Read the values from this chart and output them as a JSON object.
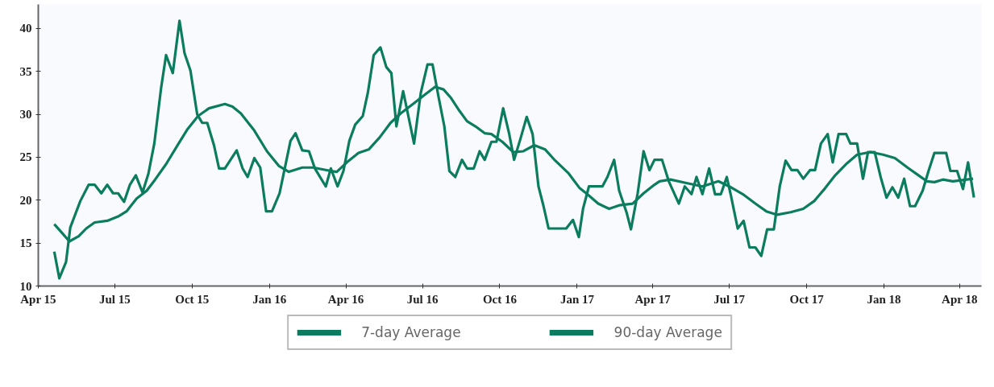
{
  "chart_data": {
    "type": "line",
    "legend": "bottom",
    "grid": false,
    "line_style": "solid",
    "marker": "none",
    "xlim": [
      "2015-04-01",
      "2018-04-27"
    ],
    "ylim": [
      10,
      42.8
    ],
    "xticks": [
      {
        "value": "2015-04-01",
        "label": "Apr 15"
      },
      {
        "value": "2015-07-01",
        "label": "Jul 15"
      },
      {
        "value": "2015-10-01",
        "label": "Oct 15"
      },
      {
        "value": "2016-01-01",
        "label": "Jan 16"
      },
      {
        "value": "2016-04-01",
        "label": "Apr 16"
      },
      {
        "value": "2016-07-01",
        "label": "Jul 16"
      },
      {
        "value": "2016-10-01",
        "label": "Oct 16"
      },
      {
        "value": "2017-01-01",
        "label": "Jan 17"
      },
      {
        "value": "2017-04-01",
        "label": "Apr 17"
      },
      {
        "value": "2017-07-01",
        "label": "Jul 17"
      },
      {
        "value": "2017-10-01",
        "label": "Oct 17"
      },
      {
        "value": "2018-01-01",
        "label": "Jan 18"
      },
      {
        "value": "2018-04-01",
        "label": "Apr 18"
      }
    ],
    "yticks": [
      10,
      15,
      20,
      25,
      30,
      35,
      40
    ],
    "series": [
      {
        "name": "7-day Average",
        "color": "#0b7d5e",
        "x": [
          "2015-04-20",
          "2015-04-26",
          "2015-05-04",
          "2015-05-09",
          "2015-05-21",
          "2015-05-31",
          "2015-06-07",
          "2015-06-15",
          "2015-06-22",
          "2015-06-29",
          "2015-07-05",
          "2015-07-12",
          "2015-07-19",
          "2015-07-26",
          "2015-08-03",
          "2015-08-10",
          "2015-08-17",
          "2015-08-25",
          "2015-08-31",
          "2015-09-08",
          "2015-09-16",
          "2015-09-22",
          "2015-09-29",
          "2015-10-07",
          "2015-10-13",
          "2015-10-19",
          "2015-10-27",
          "2015-11-02",
          "2015-11-09",
          "2015-11-23",
          "2015-11-30",
          "2015-12-06",
          "2015-12-14",
          "2015-12-21",
          "2015-12-28",
          "2016-01-04",
          "2016-01-13",
          "2016-01-26",
          "2016-02-01",
          "2016-02-09",
          "2016-02-17",
          "2016-02-24",
          "2016-03-08",
          "2016-03-14",
          "2016-03-22",
          "2016-03-29",
          "2016-04-05",
          "2016-04-12",
          "2016-04-21",
          "2016-04-27",
          "2016-05-04",
          "2016-05-12",
          "2016-05-19",
          "2016-05-25",
          "2016-05-31",
          "2016-06-08",
          "2016-06-21",
          "2016-06-29",
          "2016-07-07",
          "2016-07-13",
          "2016-07-20",
          "2016-07-27",
          "2016-08-02",
          "2016-08-09",
          "2016-08-17",
          "2016-08-23",
          "2016-08-31",
          "2016-09-07",
          "2016-09-13",
          "2016-09-21",
          "2016-09-27",
          "2016-10-05",
          "2016-10-12",
          "2016-10-18",
          "2016-10-26",
          "2016-11-02",
          "2016-11-09",
          "2016-11-16",
          "2016-11-22",
          "2016-11-28",
          "2016-12-06",
          "2016-12-13",
          "2016-12-19",
          "2016-12-27",
          "2017-01-03",
          "2017-01-08",
          "2017-01-15",
          "2017-01-23",
          "2017-01-31",
          "2017-02-06",
          "2017-02-14",
          "2017-02-20",
          "2017-03-01",
          "2017-03-06",
          "2017-03-14",
          "2017-03-21",
          "2017-03-28",
          "2017-04-03",
          "2017-04-12",
          "2017-04-20",
          "2017-05-02",
          "2017-05-09",
          "2017-05-17",
          "2017-05-23",
          "2017-05-30",
          "2017-06-07",
          "2017-06-14",
          "2017-06-21",
          "2017-06-28",
          "2017-07-03",
          "2017-07-11",
          "2017-07-18",
          "2017-07-25",
          "2017-08-01",
          "2017-08-08",
          "2017-08-15",
          "2017-08-23",
          "2017-08-30",
          "2017-09-06",
          "2017-09-13",
          "2017-09-20",
          "2017-09-27",
          "2017-10-05",
          "2017-10-11",
          "2017-10-18",
          "2017-10-26",
          "2017-11-01",
          "2017-11-08",
          "2017-11-17",
          "2017-11-22",
          "2017-11-30",
          "2017-12-07",
          "2017-12-13",
          "2017-12-21",
          "2017-12-28",
          "2018-01-04",
          "2018-01-11",
          "2018-01-18",
          "2018-01-25",
          "2018-02-01",
          "2018-02-07",
          "2018-02-16",
          "2018-02-23",
          "2018-03-02",
          "2018-03-08",
          "2018-03-16",
          "2018-03-21",
          "2018-03-29",
          "2018-04-05",
          "2018-04-11",
          "2018-04-18"
        ],
        "values": [
          14,
          10.9,
          12.8,
          16.8,
          19.9,
          21.8,
          21.8,
          20.8,
          21.8,
          20.8,
          20.8,
          19.8,
          21.8,
          22.9,
          20.9,
          23.1,
          26.6,
          33,
          36.9,
          34.8,
          40.9,
          37.1,
          35.1,
          30,
          29,
          29,
          26.4,
          23.7,
          23.7,
          25.8,
          23.7,
          22.7,
          24.9,
          23.8,
          18.7,
          18.7,
          20.8,
          26.9,
          27.8,
          25.8,
          25.7,
          23.7,
          21.6,
          23.7,
          21.6,
          23.4,
          26.9,
          28.8,
          29.8,
          32.5,
          36.9,
          37.8,
          35.5,
          34.8,
          28.6,
          32.7,
          26.6,
          32.5,
          35.8,
          35.8,
          32.1,
          28.6,
          23.4,
          22.7,
          24.7,
          23.7,
          23.7,
          25.7,
          24.7,
          26.8,
          26.8,
          30.7,
          27.8,
          24.7,
          27.3,
          29.7,
          27.7,
          21.6,
          19.3,
          16.7,
          16.7,
          16.7,
          16.7,
          17.7,
          15.7,
          19,
          21.6,
          21.6,
          21.6,
          22.7,
          24.7,
          21.1,
          18.5,
          16.6,
          20.8,
          25.7,
          23.5,
          24.7,
          24.7,
          22.2,
          19.6,
          21.6,
          20.7,
          22.7,
          20.7,
          23.7,
          20.7,
          20.7,
          22.7,
          20.5,
          16.7,
          17.6,
          14.5,
          14.5,
          13.5,
          16.6,
          16.6,
          21.6,
          24.6,
          23.5,
          23.5,
          22.5,
          23.5,
          23.5,
          26.6,
          27.7,
          24.4,
          27.7,
          27.7,
          26.6,
          26.6,
          22.5,
          25.6,
          25.6,
          22.7,
          20.3,
          21.5,
          20.3,
          22.5,
          19.3,
          19.3,
          21.1,
          23.4,
          25.5,
          25.5,
          25.5,
          23.4,
          23.4,
          21.3,
          24.4,
          20.3
        ]
      },
      {
        "name": "90-day Average",
        "color": "#0b7d5e",
        "x": [
          "2015-04-20",
          "2015-04-30",
          "2015-05-08",
          "2015-05-19",
          "2015-05-28",
          "2015-06-07",
          "2015-06-22",
          "2015-07-05",
          "2015-07-15",
          "2015-07-27",
          "2015-08-08",
          "2015-08-18",
          "2015-08-31",
          "2015-09-13",
          "2015-09-25",
          "2015-10-08",
          "2015-10-21",
          "2015-11-09",
          "2015-11-18",
          "2015-11-28",
          "2015-12-14",
          "2015-12-29",
          "2016-01-12",
          "2016-01-24",
          "2016-02-09",
          "2016-02-22",
          "2016-03-14",
          "2016-03-21",
          "2016-04-02",
          "2016-04-16",
          "2016-04-28",
          "2016-05-11",
          "2016-05-24",
          "2016-06-05",
          "2016-06-21",
          "2016-07-04",
          "2016-07-16",
          "2016-07-26",
          "2016-08-04",
          "2016-08-14",
          "2016-08-23",
          "2016-09-02",
          "2016-09-13",
          "2016-09-21",
          "2016-10-04",
          "2016-10-17",
          "2016-10-29",
          "2016-11-11",
          "2016-11-24",
          "2016-12-06",
          "2016-12-22",
          "2017-01-04",
          "2017-01-13",
          "2017-01-26",
          "2017-02-08",
          "2017-02-20",
          "2017-03-08",
          "2017-03-21",
          "2017-04-03",
          "2017-04-09",
          "2017-04-22",
          "2017-05-11",
          "2017-05-30",
          "2017-06-18",
          "2017-07-01",
          "2017-07-17",
          "2017-08-01",
          "2017-08-14",
          "2017-08-27",
          "2017-09-12",
          "2017-09-27",
          "2017-10-10",
          "2017-10-23",
          "2017-11-04",
          "2017-11-18",
          "2017-11-30",
          "2017-12-16",
          "2017-12-31",
          "2018-01-14",
          "2018-01-29",
          "2018-02-11",
          "2018-02-21",
          "2018-03-02",
          "2018-03-12",
          "2018-03-24",
          "2018-04-17"
        ],
        "values": [
          17.2,
          16.1,
          15.2,
          15.8,
          16.7,
          17.4,
          17.6,
          18.1,
          18.7,
          20.2,
          21.1,
          22.4,
          24.2,
          26.3,
          28.2,
          29.8,
          30.7,
          31.2,
          30.9,
          30.1,
          28.1,
          25.7,
          24,
          23.3,
          23.8,
          23.8,
          23.4,
          23.3,
          24.4,
          25.5,
          25.9,
          27.3,
          29,
          30.1,
          31.3,
          32.3,
          33.2,
          32.9,
          31.9,
          30.4,
          29.2,
          28.6,
          27.8,
          27.7,
          26.8,
          25.6,
          25.7,
          26.4,
          25.9,
          24.6,
          23.1,
          21.4,
          20.7,
          19.6,
          19,
          19.4,
          19.6,
          20.8,
          21.8,
          22.2,
          22.4,
          22,
          21.6,
          22.2,
          21.6,
          20.7,
          19.6,
          18.7,
          18.3,
          18.6,
          19,
          19.9,
          21.4,
          22.9,
          24.3,
          25.3,
          25.6,
          25.3,
          24.9,
          23.8,
          22.9,
          22.2,
          22.1,
          22.4,
          22.2,
          22.5
        ]
      }
    ]
  }
}
